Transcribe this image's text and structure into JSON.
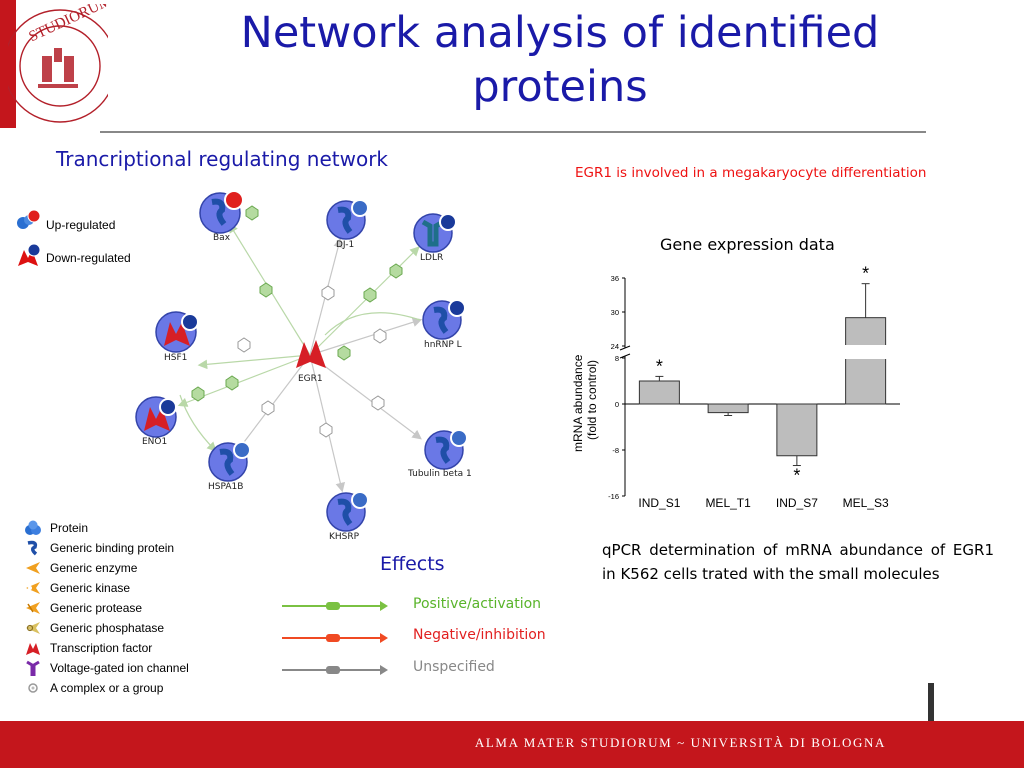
{
  "slide": {
    "title": "Network analysis of identified proteins",
    "network_title": "Trancriptional regulating network",
    "egr_note": "EGR1 is involved in a megakaryocyte differentiation",
    "gene_expression_title": "Gene expression data",
    "qpcr_caption": "qPCR  determination of mRNA abundance of EGR1 in K562 cells trated with the small molecules",
    "footer": "ALMA MATER STUDIORUM ~ UNIVERSITÀ DI BOLOGNA",
    "seal_text": "STUDIORUM"
  },
  "regulation_legend": {
    "up": "Up-regulated",
    "down": "Down-regulated",
    "up_color": "#e0201e",
    "down_color": "#1a3a9a"
  },
  "network": {
    "center": {
      "label": "EGR1",
      "icon": "transcription-factor-icon"
    },
    "nodes": [
      {
        "id": "bax",
        "label": "Bax",
        "icon": "binding-protein-icon",
        "regulation": "up"
      },
      {
        "id": "dj1",
        "label": "DJ-1",
        "icon": "binding-protein-icon",
        "regulation": "down"
      },
      {
        "id": "ldlr",
        "label": "LDLR",
        "icon": "ion-channel-icon",
        "regulation": "down"
      },
      {
        "id": "hnrnpl",
        "label": "hnRNP L",
        "icon": "binding-protein-icon",
        "regulation": "down"
      },
      {
        "id": "hsf1",
        "label": "HSF1",
        "icon": "transcription-factor-icon",
        "regulation": "down"
      },
      {
        "id": "eno1",
        "label": "ENO1",
        "icon": "transcription-factor-icon",
        "regulation": "down"
      },
      {
        "id": "hspa1b",
        "label": "HSPA1B",
        "icon": "binding-protein-icon",
        "regulation": "down"
      },
      {
        "id": "khsrp",
        "label": "KHSRP",
        "icon": "binding-protein-icon",
        "regulation": "down"
      },
      {
        "id": "tubb1",
        "label": "Tubulin beta 1",
        "icon": "binding-protein-icon",
        "regulation": "down"
      }
    ]
  },
  "object_legend": [
    {
      "label": "Protein",
      "icon": "protein-icon"
    },
    {
      "label": "Generic binding protein",
      "icon": "binding-protein-icon"
    },
    {
      "label": "Generic enzyme",
      "icon": "enzyme-icon"
    },
    {
      "label": "Generic kinase",
      "icon": "kinase-icon"
    },
    {
      "label": "Generic protease",
      "icon": "protease-icon"
    },
    {
      "label": "Generic phosphatase",
      "icon": "phosphatase-icon"
    },
    {
      "label": "Transcription factor",
      "icon": "transcription-factor-icon"
    },
    {
      "label": "Voltage-gated ion channel",
      "icon": "ion-channel-icon"
    },
    {
      "label": "A complex or a group",
      "icon": "complex-icon"
    }
  ],
  "effects": {
    "title": "Effects",
    "items": [
      {
        "label": "Positive/activation",
        "color": "#7ac142"
      },
      {
        "label": "Negative/inhibition",
        "color": "#f04a23"
      },
      {
        "label": "Unspecified",
        "color": "#888888"
      }
    ]
  },
  "chart_data": {
    "type": "bar",
    "title": "",
    "ylabel": "mRNA abundance (fold to control)",
    "xlabel": "",
    "categories": [
      "IND_S1",
      "MEL_T1",
      "IND_S7",
      "MEL_S3"
    ],
    "values": [
      4,
      -1.5,
      -9,
      29
    ],
    "errors": [
      0.8,
      0.5,
      1.7,
      6
    ],
    "significant": [
      true,
      false,
      true,
      true
    ],
    "significance_marker": "*",
    "y_ticks_lower": [
      "-16",
      "-8",
      "0",
      "8"
    ],
    "y_ticks_upper": [
      "24",
      "30",
      "36"
    ],
    "ylim": [
      -16,
      36
    ],
    "axis_break": [
      8,
      24
    ],
    "grid": false,
    "bar_color": "#bdbdbd"
  }
}
